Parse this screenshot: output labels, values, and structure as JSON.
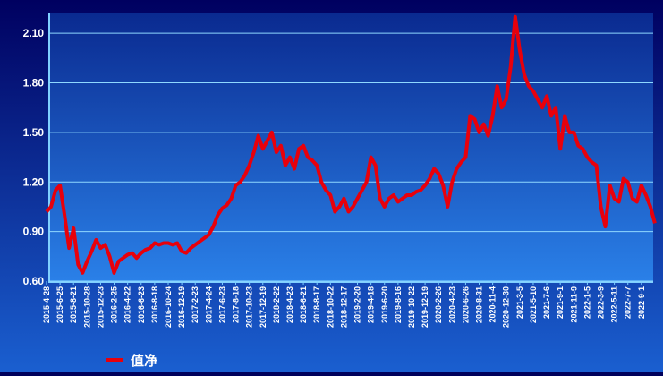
{
  "chart_data": {
    "type": "line",
    "categories": [
      "2015-4-28",
      null,
      null,
      "2015-6-25",
      null,
      null,
      "2015-8-21",
      null,
      null,
      "2015-10-28",
      null,
      null,
      "2015-12-23",
      null,
      null,
      "2016-2-25",
      null,
      null,
      "2016-4-22",
      null,
      null,
      "2016-6-23",
      null,
      null,
      "2016-8-18",
      null,
      null,
      "2016-10-24",
      null,
      null,
      "2016-12-19",
      null,
      null,
      "2017-2-23",
      null,
      null,
      "2017-4-24",
      null,
      null,
      "2017-6-23",
      null,
      null,
      "2017-8-18",
      null,
      null,
      "2017-10-23",
      null,
      null,
      "2017-12-19",
      null,
      null,
      "2018-2-22",
      null,
      null,
      "2018-4-23",
      null,
      null,
      "2018-6-21",
      null,
      null,
      "2018-8-17",
      null,
      null,
      "2018-10-22",
      null,
      null,
      "2018-12-17",
      null,
      null,
      "2019-2-20",
      null,
      null,
      "2019-4-18",
      null,
      null,
      "2019-6-20",
      null,
      null,
      "2019-8-16",
      null,
      null,
      "2019-10-22",
      null,
      null,
      "2019-12-19",
      null,
      null,
      "2020-2-26",
      null,
      null,
      "2020-4-23",
      null,
      null,
      "2020-6-26",
      null,
      null,
      "2020-8-31",
      null,
      null,
      "2020-11-4",
      null,
      null,
      "2020-12-30",
      null,
      null,
      "2021-3-5",
      null,
      null,
      "2021-5-10",
      null,
      null,
      "2021-7-6",
      null,
      null,
      "2021-9-1",
      null,
      null,
      "2021-11-9",
      null,
      null,
      "2022-1-5",
      null,
      null,
      "2022-3-9",
      null,
      null,
      "2022-5-11",
      null,
      null,
      "2022-7-7",
      null,
      null,
      "2022-9-1",
      null,
      null,
      null
    ],
    "series": [
      {
        "name": "值净",
        "color": "#e8000b",
        "values": [
          1.02,
          1.05,
          1.15,
          1.18,
          1.0,
          0.8,
          0.92,
          0.7,
          0.65,
          0.72,
          0.78,
          0.85,
          0.8,
          0.82,
          0.75,
          0.65,
          0.72,
          0.74,
          0.76,
          0.77,
          0.74,
          0.77,
          0.79,
          0.8,
          0.83,
          0.82,
          0.83,
          0.83,
          0.82,
          0.83,
          0.78,
          0.77,
          0.8,
          0.82,
          0.84,
          0.86,
          0.88,
          0.93,
          1.0,
          1.04,
          1.06,
          1.1,
          1.18,
          1.2,
          1.24,
          1.3,
          1.38,
          1.48,
          1.4,
          1.45,
          1.5,
          1.38,
          1.42,
          1.3,
          1.35,
          1.28,
          1.4,
          1.42,
          1.35,
          1.33,
          1.3,
          1.2,
          1.15,
          1.12,
          1.02,
          1.05,
          1.1,
          1.02,
          1.05,
          1.1,
          1.15,
          1.2,
          1.35,
          1.3,
          1.1,
          1.05,
          1.1,
          1.12,
          1.08,
          1.1,
          1.12,
          1.12,
          1.14,
          1.15,
          1.18,
          1.22,
          1.28,
          1.25,
          1.18,
          1.05,
          1.2,
          1.28,
          1.32,
          1.35,
          1.6,
          1.58,
          1.5,
          1.55,
          1.48,
          1.6,
          1.78,
          1.65,
          1.7,
          1.9,
          2.2,
          2.0,
          1.85,
          1.78,
          1.75,
          1.7,
          1.65,
          1.72,
          1.6,
          1.65,
          1.4,
          1.6,
          1.5,
          1.5,
          1.42,
          1.4,
          1.35,
          1.32,
          1.3,
          1.05,
          0.93,
          1.18,
          1.1,
          1.08,
          1.22,
          1.2,
          1.1,
          1.08,
          1.18,
          1.12,
          1.05,
          0.95
        ]
      }
    ],
    "ylim": [
      0.6,
      2.22
    ],
    "yticks": [
      {
        "value": 0.6,
        "label": "0.60"
      },
      {
        "value": 0.9,
        "label": "0.90"
      },
      {
        "value": 1.2,
        "label": "1.20"
      },
      {
        "value": 1.5,
        "label": "1.50"
      },
      {
        "value": 1.8,
        "label": "1.80"
      },
      {
        "value": 2.1,
        "label": "2.10"
      }
    ],
    "grid": true
  }
}
